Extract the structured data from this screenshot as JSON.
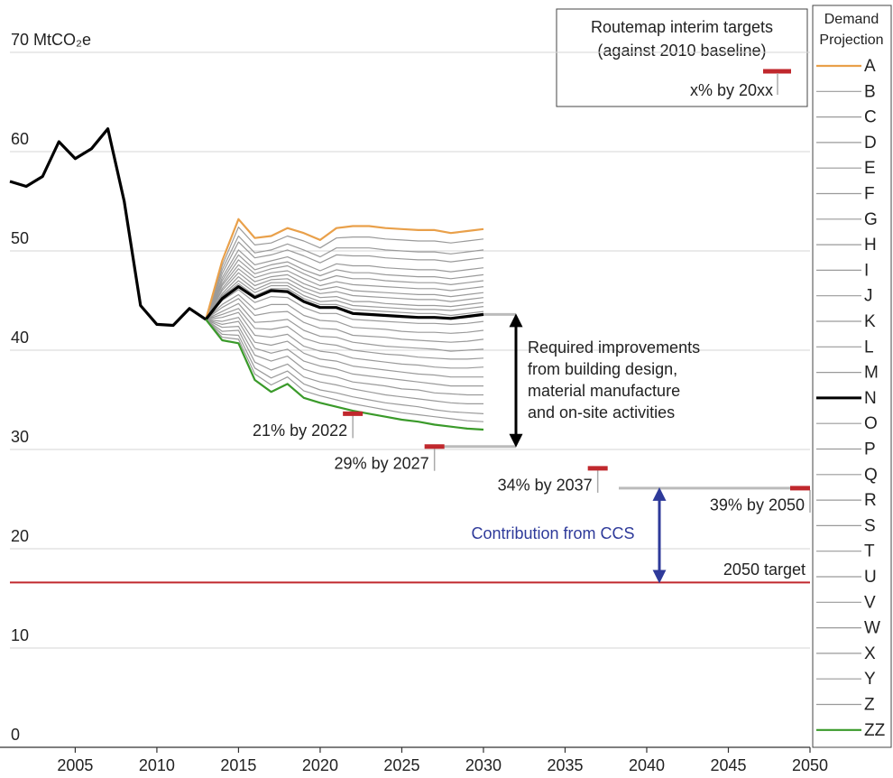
{
  "chart_data": {
    "type": "line",
    "xlim": [
      2001,
      2050
    ],
    "xticks": [
      2005,
      2010,
      2015,
      2020,
      2025,
      2030,
      2035,
      2040,
      2045,
      2050
    ],
    "ylim": [
      0,
      70
    ],
    "yticks": [
      0,
      10,
      20,
      30,
      40,
      50,
      60,
      {
        "value": 70,
        "label": "70 MtCO₂e"
      }
    ],
    "grid": true,
    "history": {
      "color": "#000000",
      "x": [
        2001,
        2002,
        2003,
        2004,
        2005,
        2006,
        2007,
        2008,
        2009,
        2010,
        2011,
        2012,
        2013
      ],
      "values": [
        57.0,
        56.5,
        57.5,
        61.0,
        59.3,
        60.3,
        62.3,
        55.0,
        44.5,
        42.6,
        42.5,
        44.2,
        43.1
      ]
    },
    "x": [
      2013,
      2014,
      2015,
      2016,
      2017,
      2018,
      2019,
      2020,
      2021,
      2022,
      2023,
      2024,
      2025,
      2026,
      2027,
      2028,
      2029,
      2030
    ],
    "legend_title": [
      "Demand",
      "Projection"
    ],
    "series": [
      {
        "name": "A",
        "color": "#e9a04a",
        "values": [
          43.1,
          49.0,
          53.2,
          51.3,
          51.5,
          52.3,
          51.8,
          51.1,
          52.3,
          52.5,
          52.5,
          52.3,
          52.2,
          52.1,
          52.1,
          51.8,
          52.0,
          52.2
        ]
      },
      {
        "name": "B",
        "color": "#9a9a9a",
        "values": [
          43.1,
          48.5,
          52.4,
          50.6,
          50.8,
          51.5,
          51.0,
          50.3,
          51.3,
          51.4,
          51.4,
          51.2,
          51.1,
          51.0,
          51.0,
          50.8,
          51.0,
          51.2
        ]
      },
      {
        "name": "C",
        "color": "#9a9a9a",
        "values": [
          43.1,
          48.1,
          51.5,
          49.8,
          50.1,
          50.7,
          50.1,
          49.4,
          50.3,
          50.3,
          50.3,
          50.1,
          50.0,
          49.9,
          49.9,
          49.7,
          49.9,
          50.1
        ]
      },
      {
        "name": "D",
        "color": "#9a9a9a",
        "values": [
          43.1,
          47.7,
          50.9,
          49.3,
          49.6,
          50.1,
          49.5,
          48.8,
          49.6,
          49.5,
          49.5,
          49.3,
          49.2,
          49.1,
          49.1,
          48.9,
          49.1,
          49.3
        ]
      },
      {
        "name": "E",
        "color": "#9a9a9a",
        "values": [
          43.1,
          47.3,
          50.1,
          48.6,
          49.0,
          49.4,
          48.7,
          48.0,
          48.7,
          48.5,
          48.5,
          48.3,
          48.2,
          48.1,
          48.1,
          47.9,
          48.1,
          48.3
        ]
      },
      {
        "name": "F",
        "color": "#9a9a9a",
        "values": [
          43.1,
          47.0,
          49.6,
          48.1,
          48.6,
          48.9,
          48.1,
          47.5,
          48.1,
          47.8,
          47.8,
          47.6,
          47.5,
          47.4,
          47.4,
          47.2,
          47.4,
          47.6
        ]
      },
      {
        "name": "G",
        "color": "#9a9a9a",
        "values": [
          43.1,
          46.7,
          49.1,
          47.7,
          48.2,
          48.5,
          47.7,
          47.0,
          47.5,
          47.2,
          47.2,
          47.0,
          46.9,
          46.8,
          46.8,
          46.6,
          46.8,
          47.0
        ]
      },
      {
        "name": "H",
        "color": "#9a9a9a",
        "values": [
          43.1,
          46.5,
          48.6,
          47.3,
          47.8,
          48.0,
          47.2,
          46.5,
          46.9,
          46.6,
          46.5,
          46.4,
          46.3,
          46.2,
          46.2,
          46.0,
          46.2,
          46.4
        ]
      },
      {
        "name": "I",
        "color": "#9a9a9a",
        "values": [
          43.1,
          46.2,
          48.2,
          46.9,
          47.4,
          47.6,
          46.7,
          46.1,
          46.4,
          46.0,
          45.9,
          45.8,
          45.7,
          45.6,
          45.6,
          45.4,
          45.6,
          45.8
        ]
      },
      {
        "name": "J",
        "color": "#9a9a9a",
        "values": [
          43.1,
          46.0,
          47.8,
          46.5,
          47.1,
          47.2,
          46.3,
          45.7,
          45.9,
          45.5,
          45.4,
          45.3,
          45.2,
          45.1,
          45.1,
          44.9,
          45.1,
          45.3
        ]
      },
      {
        "name": "K",
        "color": "#9a9a9a",
        "values": [
          43.1,
          45.7,
          47.4,
          46.1,
          46.8,
          46.8,
          45.9,
          45.3,
          45.4,
          44.9,
          44.9,
          44.7,
          44.6,
          44.5,
          44.5,
          44.4,
          44.6,
          44.8
        ]
      },
      {
        "name": "L",
        "color": "#9a9a9a",
        "values": [
          43.1,
          45.5,
          47.0,
          45.8,
          46.5,
          46.5,
          45.5,
          44.9,
          45.0,
          44.5,
          44.4,
          44.3,
          44.2,
          44.1,
          44.1,
          44.0,
          44.2,
          44.4
        ]
      },
      {
        "name": "M",
        "color": "#9a9a9a",
        "values": [
          43.1,
          45.4,
          46.7,
          45.5,
          46.2,
          46.2,
          45.2,
          44.6,
          44.6,
          44.1,
          44.0,
          43.9,
          43.8,
          43.7,
          43.7,
          43.5,
          43.7,
          43.9
        ]
      },
      {
        "name": "N",
        "color": "#000000",
        "values": [
          43.1,
          45.2,
          46.4,
          45.3,
          46.0,
          45.9,
          44.9,
          44.3,
          44.3,
          43.7,
          43.6,
          43.5,
          43.4,
          43.3,
          43.3,
          43.2,
          43.4,
          43.6
        ]
      },
      {
        "name": "O",
        "color": "#9a9a9a",
        "values": [
          43.1,
          45.0,
          46.1,
          44.8,
          45.4,
          45.3,
          44.3,
          43.7,
          43.7,
          43.1,
          43.0,
          42.9,
          42.8,
          42.7,
          42.7,
          42.6,
          42.7,
          42.9
        ]
      },
      {
        "name": "P",
        "color": "#9a9a9a",
        "values": [
          43.1,
          44.6,
          45.6,
          44.1,
          44.6,
          44.6,
          43.5,
          43.0,
          42.9,
          42.3,
          42.2,
          42.1,
          41.9,
          41.8,
          41.8,
          41.7,
          41.8,
          42.0
        ]
      },
      {
        "name": "Q",
        "color": "#9a9a9a",
        "values": [
          43.1,
          44.3,
          45.2,
          43.5,
          43.8,
          43.9,
          42.8,
          42.2,
          42.1,
          41.5,
          41.4,
          41.3,
          41.1,
          41.0,
          40.9,
          40.8,
          40.9,
          41.1
        ]
      },
      {
        "name": "R",
        "color": "#9a9a9a",
        "values": [
          43.1,
          43.9,
          44.7,
          42.8,
          42.9,
          43.1,
          42.0,
          41.4,
          41.3,
          40.8,
          40.6,
          40.4,
          40.3,
          40.2,
          40.1,
          39.9,
          40.0,
          40.1
        ]
      },
      {
        "name": "S",
        "color": "#9a9a9a",
        "values": [
          43.1,
          43.6,
          44.2,
          42.2,
          42.1,
          42.4,
          41.2,
          40.7,
          40.5,
          40.0,
          39.8,
          39.6,
          39.5,
          39.3,
          39.2,
          39.1,
          39.1,
          39.2
        ]
      },
      {
        "name": "T",
        "color": "#9a9a9a",
        "values": [
          43.1,
          43.3,
          43.8,
          41.5,
          41.3,
          41.6,
          40.4,
          39.9,
          39.7,
          39.2,
          39.0,
          38.8,
          38.6,
          38.5,
          38.3,
          38.2,
          38.2,
          38.3
        ]
      },
      {
        "name": "U",
        "color": "#9a9a9a",
        "values": [
          43.1,
          42.9,
          43.3,
          40.8,
          40.5,
          40.9,
          39.7,
          39.1,
          38.9,
          38.4,
          38.2,
          38.0,
          37.8,
          37.6,
          37.5,
          37.3,
          37.3,
          37.3
        ]
      },
      {
        "name": "V",
        "color": "#9a9a9a",
        "values": [
          43.1,
          42.6,
          42.9,
          40.2,
          39.7,
          40.1,
          38.9,
          38.4,
          38.1,
          37.6,
          37.4,
          37.2,
          37.0,
          36.8,
          36.6,
          36.4,
          36.4,
          36.4
        ]
      },
      {
        "name": "W",
        "color": "#9a9a9a",
        "values": [
          43.1,
          42.3,
          42.4,
          39.5,
          38.9,
          39.4,
          38.1,
          37.6,
          37.3,
          36.8,
          36.6,
          36.4,
          36.1,
          36.0,
          35.7,
          35.6,
          35.5,
          35.5
        ]
      },
      {
        "name": "X",
        "color": "#9a9a9a",
        "values": [
          43.1,
          41.9,
          42.0,
          38.8,
          38.0,
          38.6,
          37.3,
          36.8,
          36.5,
          36.1,
          35.8,
          35.5,
          35.3,
          35.1,
          34.9,
          34.7,
          34.6,
          34.6
        ]
      },
      {
        "name": "Y",
        "color": "#9a9a9a",
        "values": [
          43.1,
          41.6,
          41.5,
          38.2,
          37.2,
          37.9,
          36.6,
          36.0,
          35.7,
          35.3,
          35.0,
          34.7,
          34.5,
          34.3,
          34.0,
          33.8,
          33.7,
          33.6
        ]
      },
      {
        "name": "Z",
        "color": "#9a9a9a",
        "values": [
          43.1,
          41.3,
          41.1,
          37.6,
          36.5,
          37.3,
          35.9,
          35.4,
          35.0,
          34.6,
          34.3,
          34.0,
          33.7,
          33.5,
          33.3,
          33.1,
          32.9,
          32.8
        ]
      },
      {
        "name": "ZZ",
        "color": "#3a9a2a",
        "values": [
          43.1,
          41.0,
          40.7,
          37.0,
          35.8,
          36.6,
          35.2,
          34.7,
          34.3,
          33.9,
          33.6,
          33.3,
          33.0,
          32.8,
          32.5,
          32.3,
          32.1,
          32.0
        ]
      }
    ],
    "targets": [
      {
        "label": "21% by 2022",
        "year": 2022,
        "value": 33.6
      },
      {
        "label": "29% by 2027",
        "year": 2027,
        "value": 30.3
      },
      {
        "label": "34% by 2037",
        "year": 2037,
        "value": 28.1
      },
      {
        "label": "39% by 2050",
        "year": 2050,
        "value": 26.1
      }
    ],
    "target_color": "#c0282d",
    "target_2050": {
      "label": "2050 target",
      "value": 16.6
    },
    "required_improvements": [
      "Required improvements",
      "from building design,",
      "material manufacture",
      "and on-site activities"
    ],
    "ccs_label": "Contribution from CCS",
    "ccs_color": "#2e3a9a",
    "targets_key": {
      "title": [
        "Routemap interim targets",
        "(against 2010 baseline)"
      ],
      "example": "x% by 20xx"
    }
  }
}
